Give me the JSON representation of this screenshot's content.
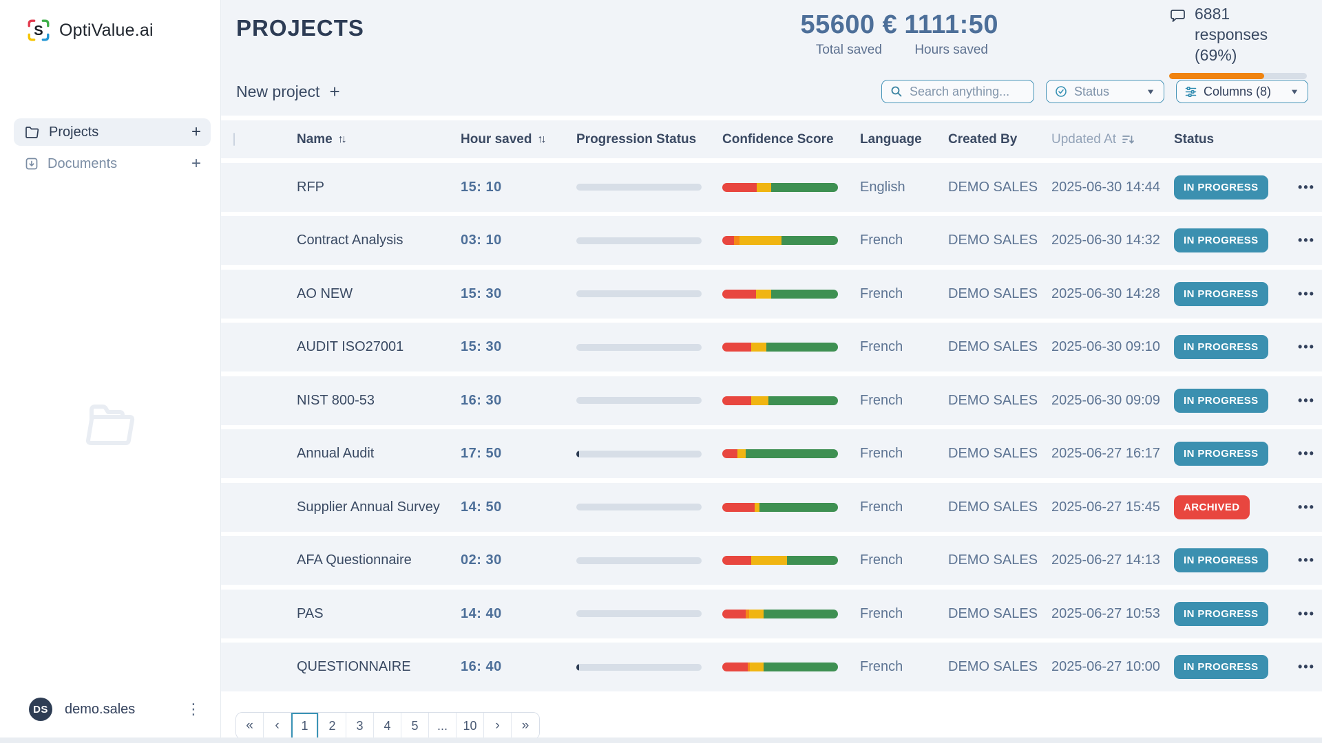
{
  "brand": {
    "name": "OptiValue.ai",
    "logo_letter": "S"
  },
  "sidebar": {
    "items": [
      {
        "label": "Projects",
        "active": true
      },
      {
        "label": "Documents",
        "active": false
      }
    ],
    "add_label": "+",
    "user": {
      "initials": "DS",
      "name": "demo.sales"
    }
  },
  "header": {
    "title": "PROJECTS",
    "stats": [
      {
        "value": "55600 €",
        "label": "Total saved"
      },
      {
        "value": "1111:50",
        "label": "Hours saved"
      }
    ],
    "responses": {
      "text": "6881 responses (69%)",
      "percent": 69
    }
  },
  "toolbar": {
    "new_project_label": "New project",
    "new_project_plus": "+",
    "search_placeholder": "Search anything...",
    "status_label": "Status",
    "columns_label": "Columns (8)"
  },
  "table": {
    "headers": [
      "Name",
      "Hour saved",
      "Progression Status",
      "Confidence Score",
      "Language",
      "Created By",
      "Updated At",
      "Status"
    ],
    "sort_glyph": "↑↓",
    "rows": [
      {
        "name": "RFP",
        "hours": "15: 10",
        "progression_pct": 0,
        "confidence_segments": [
          {
            "color": "red",
            "pct": 30
          },
          {
            "color": "yellow",
            "pct": 12
          },
          {
            "color": "green",
            "pct": 58
          }
        ],
        "language": "English",
        "created_by": "DEMO SALES",
        "updated_at": "2025-06-30 14:44",
        "status": "IN PROGRESS",
        "actions": "•••"
      },
      {
        "name": "Contract Analysis",
        "hours": "03: 10",
        "progression_pct": 0,
        "confidence_segments": [
          {
            "color": "red",
            "pct": 10
          },
          {
            "color": "orange",
            "pct": 5
          },
          {
            "color": "yellow",
            "pct": 36
          },
          {
            "color": "green",
            "pct": 49
          }
        ],
        "language": "French",
        "created_by": "DEMO SALES",
        "updated_at": "2025-06-30 14:32",
        "status": "IN PROGRESS",
        "actions": "•••"
      },
      {
        "name": "AO NEW",
        "hours": "15: 30",
        "progression_pct": 0,
        "confidence_segments": [
          {
            "color": "red",
            "pct": 29
          },
          {
            "color": "yellow",
            "pct": 13
          },
          {
            "color": "green",
            "pct": 58
          }
        ],
        "language": "French",
        "created_by": "DEMO SALES",
        "updated_at": "2025-06-30 14:28",
        "status": "IN PROGRESS",
        "actions": "•••"
      },
      {
        "name": "AUDIT ISO27001",
        "hours": "15: 30",
        "progression_pct": 0,
        "confidence_segments": [
          {
            "color": "red",
            "pct": 25
          },
          {
            "color": "yellow",
            "pct": 13
          },
          {
            "color": "green",
            "pct": 62
          }
        ],
        "language": "French",
        "created_by": "DEMO SALES",
        "updated_at": "2025-06-30 09:10",
        "status": "IN PROGRESS",
        "actions": "•••"
      },
      {
        "name": "NIST 800-53",
        "hours": "16: 30",
        "progression_pct": 0,
        "confidence_segments": [
          {
            "color": "red",
            "pct": 25
          },
          {
            "color": "yellow",
            "pct": 15
          },
          {
            "color": "green",
            "pct": 60
          }
        ],
        "language": "French",
        "created_by": "DEMO SALES",
        "updated_at": "2025-06-30 09:09",
        "status": "IN PROGRESS",
        "actions": "•••"
      },
      {
        "name": "Annual Audit",
        "hours": "17: 50",
        "progression_pct": 2,
        "confidence_segments": [
          {
            "color": "red",
            "pct": 13
          },
          {
            "color": "yellow",
            "pct": 7
          },
          {
            "color": "green",
            "pct": 80
          }
        ],
        "language": "French",
        "created_by": "DEMO SALES",
        "updated_at": "2025-06-27 16:17",
        "status": "IN PROGRESS",
        "actions": "•••"
      },
      {
        "name": "Supplier Annual Survey",
        "hours": "14: 50",
        "progression_pct": 0,
        "confidence_segments": [
          {
            "color": "red",
            "pct": 28
          },
          {
            "color": "yellow",
            "pct": 4
          },
          {
            "color": "green",
            "pct": 68
          }
        ],
        "language": "French",
        "created_by": "DEMO SALES",
        "updated_at": "2025-06-27 15:45",
        "status": "ARCHIVED",
        "actions": "•••"
      },
      {
        "name": "AFA Questionnaire",
        "hours": "02: 30",
        "progression_pct": 0,
        "confidence_segments": [
          {
            "color": "red",
            "pct": 25
          },
          {
            "color": "yellow",
            "pct": 31
          },
          {
            "color": "green",
            "pct": 44
          }
        ],
        "language": "French",
        "created_by": "DEMO SALES",
        "updated_at": "2025-06-27 14:13",
        "status": "IN PROGRESS",
        "actions": "•••"
      },
      {
        "name": "PAS",
        "hours": "14: 40",
        "progression_pct": 0,
        "confidence_segments": [
          {
            "color": "red",
            "pct": 20
          },
          {
            "color": "orange",
            "pct": 3
          },
          {
            "color": "yellow",
            "pct": 13
          },
          {
            "color": "green",
            "pct": 64
          }
        ],
        "language": "French",
        "created_by": "DEMO SALES",
        "updated_at": "2025-06-27 10:53",
        "status": "IN PROGRESS",
        "actions": "•••"
      },
      {
        "name": "QUESTIONNAIRE",
        "hours": "16: 40",
        "progression_pct": 2,
        "confidence_segments": [
          {
            "color": "red",
            "pct": 22
          },
          {
            "color": "orange",
            "pct": 2
          },
          {
            "color": "yellow",
            "pct": 12
          },
          {
            "color": "green",
            "pct": 64
          }
        ],
        "language": "French",
        "created_by": "DEMO SALES",
        "updated_at": "2025-06-27 10:00",
        "status": "IN PROGRESS",
        "actions": "•••"
      }
    ]
  },
  "pagination": {
    "items": [
      {
        "label": "«",
        "type": "nav"
      },
      {
        "label": "‹",
        "type": "nav"
      },
      {
        "label": "1",
        "type": "page",
        "active": true
      },
      {
        "label": "2",
        "type": "page"
      },
      {
        "label": "3",
        "type": "page"
      },
      {
        "label": "4",
        "type": "page"
      },
      {
        "label": "5",
        "type": "page"
      },
      {
        "label": "...",
        "type": "ellipsis"
      },
      {
        "label": "10",
        "type": "page"
      },
      {
        "label": "›",
        "type": "nav"
      },
      {
        "label": "»",
        "type": "nav"
      }
    ]
  },
  "colors": {
    "red": "#e8463f",
    "orange": "#f58718",
    "yellow": "#f0b512",
    "green": "#3e9052",
    "badge_teal": "#3b90b0",
    "badge_red": "#e8463f",
    "accent": "#3a93b5",
    "progress_orange": "#f0830f",
    "progress_fill_dark": "#2e3d54"
  }
}
